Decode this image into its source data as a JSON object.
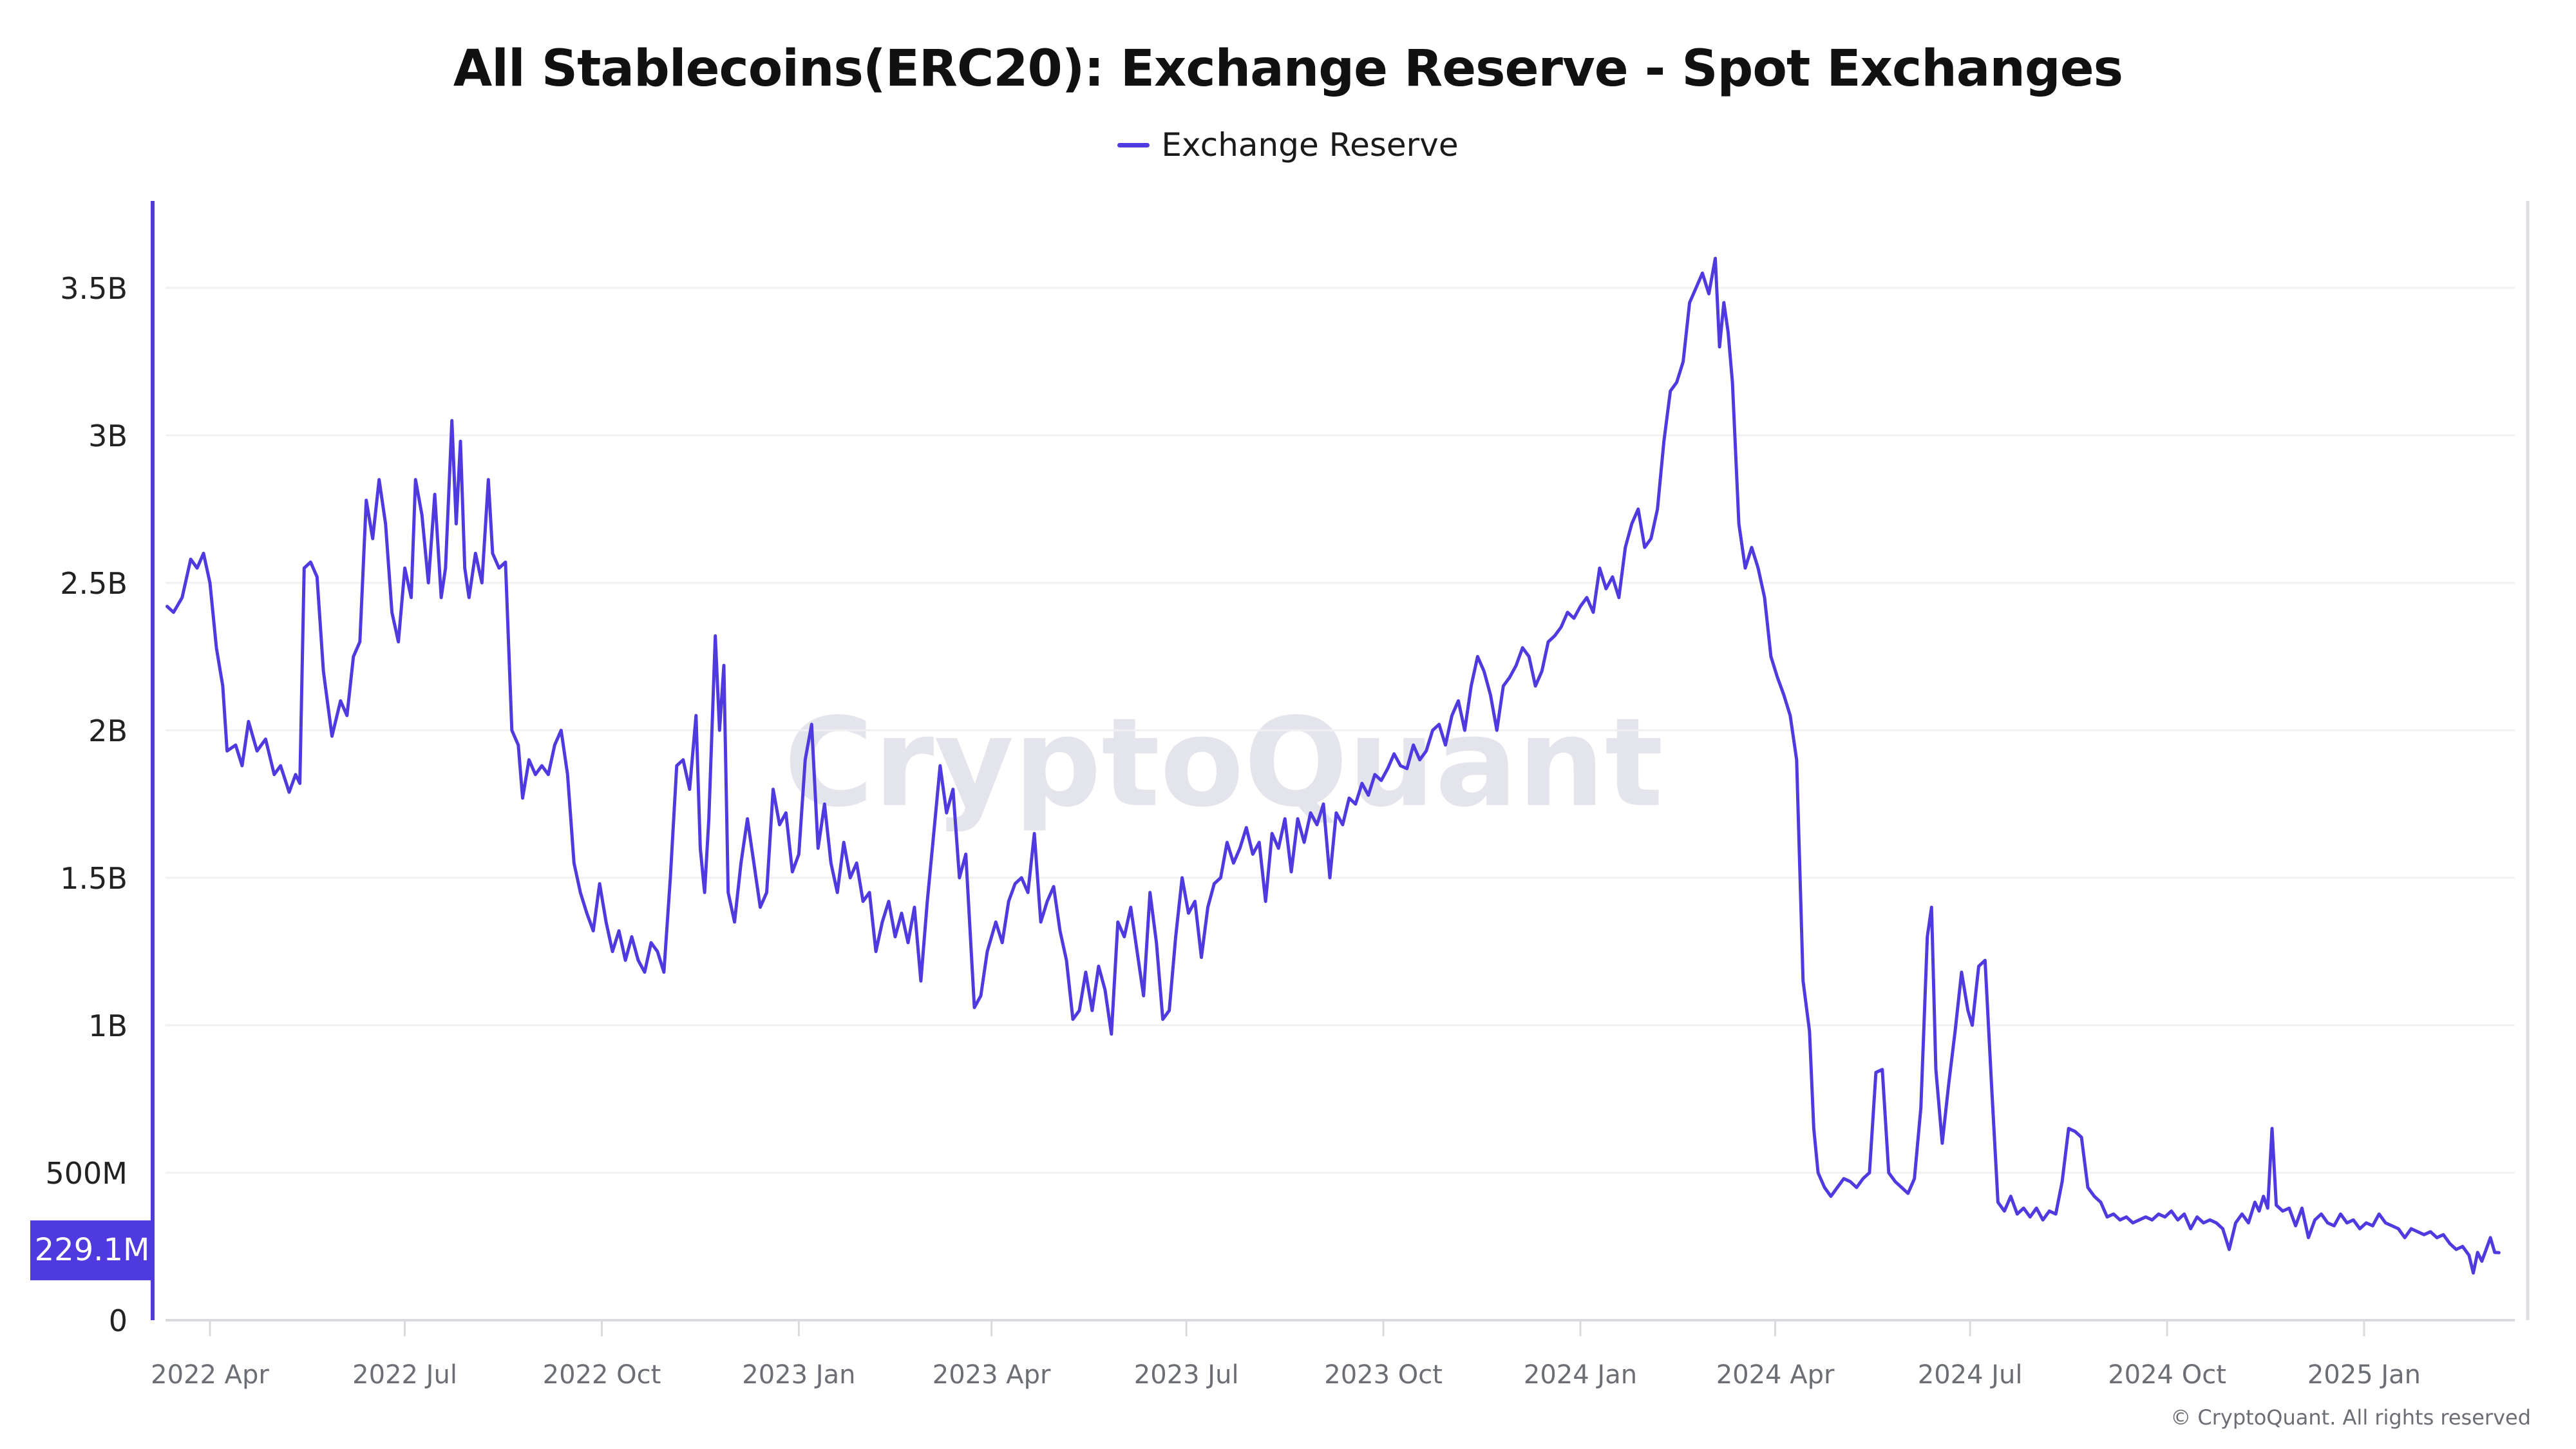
{
  "title": "All Stablecoins(ERC20): Exchange Reserve - Spot Exchanges",
  "legend": [
    {
      "label": "Exchange Reserve",
      "color": "#4f3ae0"
    }
  ],
  "watermark": "CryptoQuant",
  "copyright": "© CryptoQuant. All rights reserved",
  "last_value_label": "229.1M",
  "colors": {
    "series": "#4f3ae0",
    "grid": "#f0f0f3",
    "axis": "#d9d9de",
    "text": "#222222",
    "tick_text": "#6b6e75"
  },
  "chart_data": {
    "type": "line",
    "title": "All Stablecoins(ERC20): Exchange Reserve - Spot Exchanges",
    "xlabel": "",
    "ylabel": "",
    "ylim": [
      0,
      3.75
    ],
    "y_unit": "billions USD",
    "grid": true,
    "legend_position": "top-center",
    "y_ticks": [
      {
        "value": 0,
        "label": "0"
      },
      {
        "value": 0.5,
        "label": "500M"
      },
      {
        "value": 1,
        "label": "1B"
      },
      {
        "value": 1.5,
        "label": "1.5B"
      },
      {
        "value": 2,
        "label": "2B"
      },
      {
        "value": 2.5,
        "label": "2.5B"
      },
      {
        "value": 3,
        "label": "3B"
      },
      {
        "value": 3.5,
        "label": "3.5B"
      }
    ],
    "x_ticks": [
      {
        "date": "2022-04-01",
        "label": "2022 Apr"
      },
      {
        "date": "2022-07-01",
        "label": "2022 Jul"
      },
      {
        "date": "2022-10-01",
        "label": "2022 Oct"
      },
      {
        "date": "2023-01-01",
        "label": "2023 Jan"
      },
      {
        "date": "2023-04-01",
        "label": "2023 Apr"
      },
      {
        "date": "2023-07-01",
        "label": "2023 Jul"
      },
      {
        "date": "2023-10-01",
        "label": "2023 Oct"
      },
      {
        "date": "2024-01-01",
        "label": "2024 Jan"
      },
      {
        "date": "2024-04-01",
        "label": "2024 Apr"
      },
      {
        "date": "2024-07-01",
        "label": "2024 Jul"
      },
      {
        "date": "2024-10-01",
        "label": "2024 Oct"
      },
      {
        "date": "2025-01-01",
        "label": "2025 Jan"
      }
    ],
    "series": [
      {
        "name": "Exchange Reserve",
        "last_value": 0.2291,
        "x": [
          "2022-03-12",
          "2022-03-15",
          "2022-03-19",
          "2022-03-23",
          "2022-03-26",
          "2022-03-29",
          "2022-04-01",
          "2022-04-04",
          "2022-04-07",
          "2022-04-09",
          "2022-04-13",
          "2022-04-16",
          "2022-04-19",
          "2022-04-23",
          "2022-04-27",
          "2022-05-01",
          "2022-05-04",
          "2022-05-08",
          "2022-05-11",
          "2022-05-13",
          "2022-05-15",
          "2022-05-18",
          "2022-05-21",
          "2022-05-24",
          "2022-05-28",
          "2022-06-01",
          "2022-06-04",
          "2022-06-07",
          "2022-06-10",
          "2022-06-13",
          "2022-06-16",
          "2022-06-19",
          "2022-06-22",
          "2022-06-25",
          "2022-06-28",
          "2022-07-01",
          "2022-07-04",
          "2022-07-06",
          "2022-07-09",
          "2022-07-12",
          "2022-07-15",
          "2022-07-18",
          "2022-07-20",
          "2022-07-23",
          "2022-07-25",
          "2022-07-27",
          "2022-07-29",
          "2022-07-31",
          "2022-08-03",
          "2022-08-06",
          "2022-08-09",
          "2022-08-11",
          "2022-08-14",
          "2022-08-17",
          "2022-08-20",
          "2022-08-23",
          "2022-08-25",
          "2022-08-28",
          "2022-08-31",
          "2022-09-03",
          "2022-09-06",
          "2022-09-09",
          "2022-09-12",
          "2022-09-15",
          "2022-09-18",
          "2022-09-21",
          "2022-09-24",
          "2022-09-27",
          "2022-09-30",
          "2022-10-03",
          "2022-10-06",
          "2022-10-09",
          "2022-10-12",
          "2022-10-15",
          "2022-10-18",
          "2022-10-21",
          "2022-10-24",
          "2022-10-27",
          "2022-10-30",
          "2022-11-02",
          "2022-11-05",
          "2022-11-08",
          "2022-11-11",
          "2022-11-14",
          "2022-11-16",
          "2022-11-18",
          "2022-11-20",
          "2022-11-23",
          "2022-11-25",
          "2022-11-27",
          "2022-11-29",
          "2022-12-02",
          "2022-12-05",
          "2022-12-08",
          "2022-12-11",
          "2022-12-14",
          "2022-12-17",
          "2022-12-20",
          "2022-12-23",
          "2022-12-26",
          "2022-12-29",
          "2023-01-01",
          "2023-01-04",
          "2023-01-07",
          "2023-01-10",
          "2023-01-13",
          "2023-01-16",
          "2023-01-19",
          "2023-01-22",
          "2023-01-25",
          "2023-01-28",
          "2023-01-31",
          "2023-02-03",
          "2023-02-06",
          "2023-02-09",
          "2023-02-12",
          "2023-02-15",
          "2023-02-18",
          "2023-02-21",
          "2023-02-24",
          "2023-02-27",
          "2023-03-02",
          "2023-03-05",
          "2023-03-08",
          "2023-03-11",
          "2023-03-14",
          "2023-03-17",
          "2023-03-20",
          "2023-03-24",
          "2023-03-27",
          "2023-03-30",
          "2023-04-03",
          "2023-04-06",
          "2023-04-09",
          "2023-04-12",
          "2023-04-15",
          "2023-04-18",
          "2023-04-21",
          "2023-04-24",
          "2023-04-27",
          "2023-04-30",
          "2023-05-03",
          "2023-05-06",
          "2023-05-09",
          "2023-05-12",
          "2023-05-15",
          "2023-05-18",
          "2023-05-21",
          "2023-05-24",
          "2023-05-27",
          "2023-05-30",
          "2023-06-02",
          "2023-06-05",
          "2023-06-08",
          "2023-06-11",
          "2023-06-14",
          "2023-06-17",
          "2023-06-20",
          "2023-06-23",
          "2023-06-26",
          "2023-06-29",
          "2023-07-02",
          "2023-07-05",
          "2023-07-08",
          "2023-07-11",
          "2023-07-14",
          "2023-07-17",
          "2023-07-20",
          "2023-07-23",
          "2023-07-26",
          "2023-07-29",
          "2023-08-01",
          "2023-08-04",
          "2023-08-07",
          "2023-08-10",
          "2023-08-13",
          "2023-08-16",
          "2023-08-19",
          "2023-08-22",
          "2023-08-25",
          "2023-08-28",
          "2023-08-31",
          "2023-09-03",
          "2023-09-06",
          "2023-09-09",
          "2023-09-12",
          "2023-09-15",
          "2023-09-18",
          "2023-09-21",
          "2023-09-24",
          "2023-09-27",
          "2023-09-30",
          "2023-10-03",
          "2023-10-06",
          "2023-10-09",
          "2023-10-12",
          "2023-10-15",
          "2023-10-18",
          "2023-10-21",
          "2023-10-24",
          "2023-10-27",
          "2023-10-30",
          "2023-11-02",
          "2023-11-05",
          "2023-11-08",
          "2023-11-11",
          "2023-11-14",
          "2023-11-17",
          "2023-11-20",
          "2023-11-23",
          "2023-11-26",
          "2023-11-29",
          "2023-12-02",
          "2023-12-05",
          "2023-12-08",
          "2023-12-11",
          "2023-12-14",
          "2023-12-17",
          "2023-12-20",
          "2023-12-23",
          "2023-12-26",
          "2023-12-29",
          "2024-01-01",
          "2024-01-04",
          "2024-01-07",
          "2024-01-10",
          "2024-01-13",
          "2024-01-16",
          "2024-01-19",
          "2024-01-22",
          "2024-01-25",
          "2024-01-28",
          "2024-01-31",
          "2024-02-03",
          "2024-02-06",
          "2024-02-09",
          "2024-02-12",
          "2024-02-15",
          "2024-02-18",
          "2024-02-21",
          "2024-02-24",
          "2024-02-27",
          "2024-03-01",
          "2024-03-04",
          "2024-03-06",
          "2024-03-08",
          "2024-03-10",
          "2024-03-12",
          "2024-03-15",
          "2024-03-18",
          "2024-03-21",
          "2024-03-24",
          "2024-03-27",
          "2024-03-30",
          "2024-04-02",
          "2024-04-05",
          "2024-04-08",
          "2024-04-11",
          "2024-04-14",
          "2024-04-17",
          "2024-04-19",
          "2024-04-21",
          "2024-04-24",
          "2024-04-27",
          "2024-04-30",
          "2024-05-03",
          "2024-05-06",
          "2024-05-09",
          "2024-05-12",
          "2024-05-15",
          "2024-05-18",
          "2024-05-21",
          "2024-05-24",
          "2024-05-27",
          "2024-05-30",
          "2024-06-02",
          "2024-06-05",
          "2024-06-08",
          "2024-06-11",
          "2024-06-13",
          "2024-06-15",
          "2024-06-18",
          "2024-06-21",
          "2024-06-24",
          "2024-06-27",
          "2024-06-30",
          "2024-07-02",
          "2024-07-05",
          "2024-07-08",
          "2024-07-11",
          "2024-07-14",
          "2024-07-17",
          "2024-07-20",
          "2024-07-23",
          "2024-07-26",
          "2024-07-29",
          "2024-08-01",
          "2024-08-04",
          "2024-08-07",
          "2024-08-10",
          "2024-08-13",
          "2024-08-16",
          "2024-08-19",
          "2024-08-22",
          "2024-08-25",
          "2024-08-28",
          "2024-08-31",
          "2024-09-03",
          "2024-09-06",
          "2024-09-09",
          "2024-09-12",
          "2024-09-15",
          "2024-09-18",
          "2024-09-21",
          "2024-09-24",
          "2024-09-27",
          "2024-09-30",
          "2024-10-03",
          "2024-10-06",
          "2024-10-09",
          "2024-10-12",
          "2024-10-15",
          "2024-10-18",
          "2024-10-21",
          "2024-10-24",
          "2024-10-27",
          "2024-10-30",
          "2024-11-02",
          "2024-11-05",
          "2024-11-08",
          "2024-11-11",
          "2024-11-13",
          "2024-11-15",
          "2024-11-17",
          "2024-11-19",
          "2024-11-21",
          "2024-11-24",
          "2024-11-27",
          "2024-11-30",
          "2024-12-03",
          "2024-12-06",
          "2024-12-09",
          "2024-12-12",
          "2024-12-15",
          "2024-12-18",
          "2024-12-21",
          "2024-12-24",
          "2024-12-27",
          "2024-12-30",
          "2025-01-02",
          "2025-01-05",
          "2025-01-08",
          "2025-01-11",
          "2025-01-14",
          "2025-01-17",
          "2025-01-20",
          "2025-01-23",
          "2025-01-26",
          "2025-01-29",
          "2025-02-01",
          "2025-02-04",
          "2025-02-07",
          "2025-02-10",
          "2025-02-13",
          "2025-02-16",
          "2025-02-19",
          "2025-02-21",
          "2025-02-23",
          "2025-02-25",
          "2025-02-27",
          "2025-03-01",
          "2025-03-03",
          "2025-03-05"
        ],
        "values": [
          2.42,
          2.4,
          2.45,
          2.58,
          2.55,
          2.6,
          2.5,
          2.28,
          2.15,
          1.93,
          1.95,
          1.88,
          2.03,
          1.93,
          1.97,
          1.85,
          1.88,
          1.79,
          1.85,
          1.82,
          2.55,
          2.57,
          2.52,
          2.2,
          1.98,
          2.1,
          2.05,
          2.25,
          2.3,
          2.78,
          2.65,
          2.85,
          2.7,
          2.4,
          2.3,
          2.55,
          2.45,
          2.85,
          2.73,
          2.5,
          2.8,
          2.45,
          2.55,
          3.05,
          2.7,
          2.98,
          2.55,
          2.45,
          2.6,
          2.5,
          2.85,
          2.6,
          2.55,
          2.57,
          2.0,
          1.95,
          1.77,
          1.9,
          1.85,
          1.88,
          1.85,
          1.95,
          2.0,
          1.85,
          1.55,
          1.45,
          1.38,
          1.32,
          1.48,
          1.35,
          1.25,
          1.32,
          1.22,
          1.3,
          1.22,
          1.18,
          1.28,
          1.25,
          1.18,
          1.5,
          1.88,
          1.9,
          1.8,
          2.05,
          1.6,
          1.45,
          1.7,
          2.32,
          2.0,
          2.22,
          1.45,
          1.35,
          1.55,
          1.7,
          1.55,
          1.4,
          1.45,
          1.8,
          1.68,
          1.72,
          1.52,
          1.58,
          1.9,
          2.02,
          1.6,
          1.75,
          1.55,
          1.45,
          1.62,
          1.5,
          1.55,
          1.42,
          1.45,
          1.25,
          1.35,
          1.42,
          1.3,
          1.38,
          1.28,
          1.4,
          1.15,
          1.42,
          1.65,
          1.88,
          1.72,
          1.8,
          1.5,
          1.58,
          1.06,
          1.1,
          1.25,
          1.35,
          1.28,
          1.42,
          1.48,
          1.5,
          1.45,
          1.65,
          1.35,
          1.42,
          1.47,
          1.32,
          1.22,
          1.02,
          1.05,
          1.18,
          1.05,
          1.2,
          1.12,
          0.97,
          1.35,
          1.3,
          1.4,
          1.25,
          1.1,
          1.45,
          1.28,
          1.02,
          1.05,
          1.3,
          1.5,
          1.38,
          1.42,
          1.23,
          1.4,
          1.48,
          1.5,
          1.62,
          1.55,
          1.6,
          1.67,
          1.58,
          1.62,
          1.42,
          1.65,
          1.6,
          1.7,
          1.52,
          1.7,
          1.62,
          1.72,
          1.68,
          1.75,
          1.5,
          1.72,
          1.68,
          1.77,
          1.75,
          1.82,
          1.78,
          1.85,
          1.83,
          1.87,
          1.92,
          1.88,
          1.87,
          1.95,
          1.9,
          1.93,
          2.0,
          2.02,
          1.95,
          2.05,
          2.1,
          2.0,
          2.15,
          2.25,
          2.2,
          2.12,
          2.0,
          2.15,
          2.18,
          2.22,
          2.28,
          2.25,
          2.15,
          2.2,
          2.3,
          2.32,
          2.35,
          2.4,
          2.38,
          2.42,
          2.45,
          2.4,
          2.55,
          2.48,
          2.52,
          2.45,
          2.62,
          2.7,
          2.75,
          2.62,
          2.65,
          2.75,
          2.98,
          3.15,
          3.18,
          3.25,
          3.45,
          3.5,
          3.55,
          3.48,
          3.6,
          3.3,
          3.45,
          3.35,
          3.18,
          2.7,
          2.55,
          2.62,
          2.55,
          2.45,
          2.25,
          2.18,
          2.12,
          2.05,
          1.9,
          1.15,
          0.98,
          0.65,
          0.5,
          0.45,
          0.42,
          0.45,
          0.48,
          0.47,
          0.45,
          0.48,
          0.5,
          0.84,
          0.85,
          0.5,
          0.47,
          0.45,
          0.43,
          0.48,
          0.72,
          1.3,
          1.4,
          0.85,
          0.6,
          0.8,
          0.98,
          1.18,
          1.05,
          1.0,
          1.2,
          1.22,
          0.8,
          0.4,
          0.37,
          0.42,
          0.36,
          0.38,
          0.35,
          0.38,
          0.34,
          0.37,
          0.36,
          0.47,
          0.65,
          0.64,
          0.62,
          0.45,
          0.42,
          0.4,
          0.35,
          0.36,
          0.34,
          0.35,
          0.33,
          0.34,
          0.35,
          0.34,
          0.36,
          0.35,
          0.37,
          0.34,
          0.36,
          0.31,
          0.35,
          0.33,
          0.34,
          0.33,
          0.31,
          0.24,
          0.33,
          0.36,
          0.33,
          0.4,
          0.37,
          0.42,
          0.38,
          0.65,
          0.39,
          0.37,
          0.38,
          0.32,
          0.38,
          0.28,
          0.34,
          0.36,
          0.33,
          0.32,
          0.36,
          0.33,
          0.34,
          0.31,
          0.33,
          0.32,
          0.36,
          0.33,
          0.32,
          0.31,
          0.28,
          0.31,
          0.3,
          0.29,
          0.3,
          0.28,
          0.29,
          0.26,
          0.24,
          0.25,
          0.22,
          0.16,
          0.23,
          0.2,
          0.24,
          0.28,
          0.23,
          0.2291
        ]
      }
    ]
  }
}
